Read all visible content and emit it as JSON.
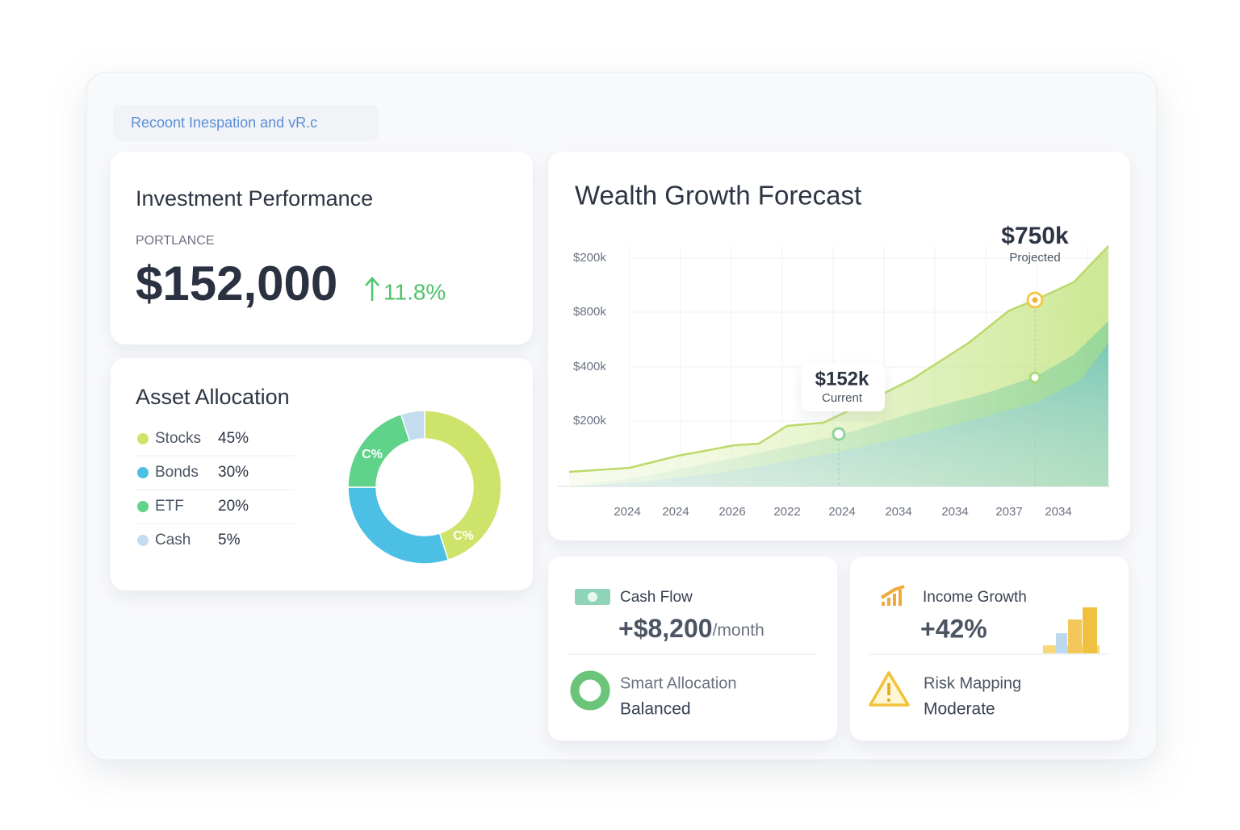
{
  "header": {
    "label": "Recoont Inespation and vR.c"
  },
  "performance": {
    "title": "Investment Performance",
    "label": "PORTLANCE",
    "value": "$152,000",
    "change": "11.8%"
  },
  "allocation": {
    "title": "Asset Allocation",
    "items": [
      {
        "name": "Stocks",
        "value": 45,
        "value_label": "45%",
        "color": "#cde36a"
      },
      {
        "name": "Bonds",
        "value": 30,
        "value_label": "30%",
        "color": "#4cc0e4"
      },
      {
        "name": "ETF",
        "value": 20,
        "value_label": "20%",
        "color": "#5fd38a"
      },
      {
        "name": "Cash",
        "value": 5,
        "value_label": "5%",
        "color": "#c4dcef"
      }
    ],
    "donut_labels": [
      "C%",
      "C%"
    ]
  },
  "forecast": {
    "title": "Wealth Growth Forecast",
    "y_labels": [
      "$200k",
      "$800k",
      "$400k",
      "$200k"
    ],
    "x_labels": [
      "2024",
      "2024",
      "2026",
      "2022",
      "2024",
      "2034",
      "2034",
      "2037",
      "2034"
    ],
    "current": {
      "value": "$152k",
      "label": "Current"
    },
    "projected": {
      "value": "$750k",
      "label": "Projected"
    }
  },
  "cards": {
    "cash_flow": {
      "title": "Cash Flow",
      "value": "+$8,200",
      "unit": "/month"
    },
    "income_growth": {
      "title": "Income Growth",
      "value": "+42%"
    },
    "smart_allocation": {
      "title": "Smart Allocation",
      "status": "Balanced"
    },
    "risk_mapping": {
      "title": "Risk Mapping",
      "status": "Moderate"
    }
  }
}
